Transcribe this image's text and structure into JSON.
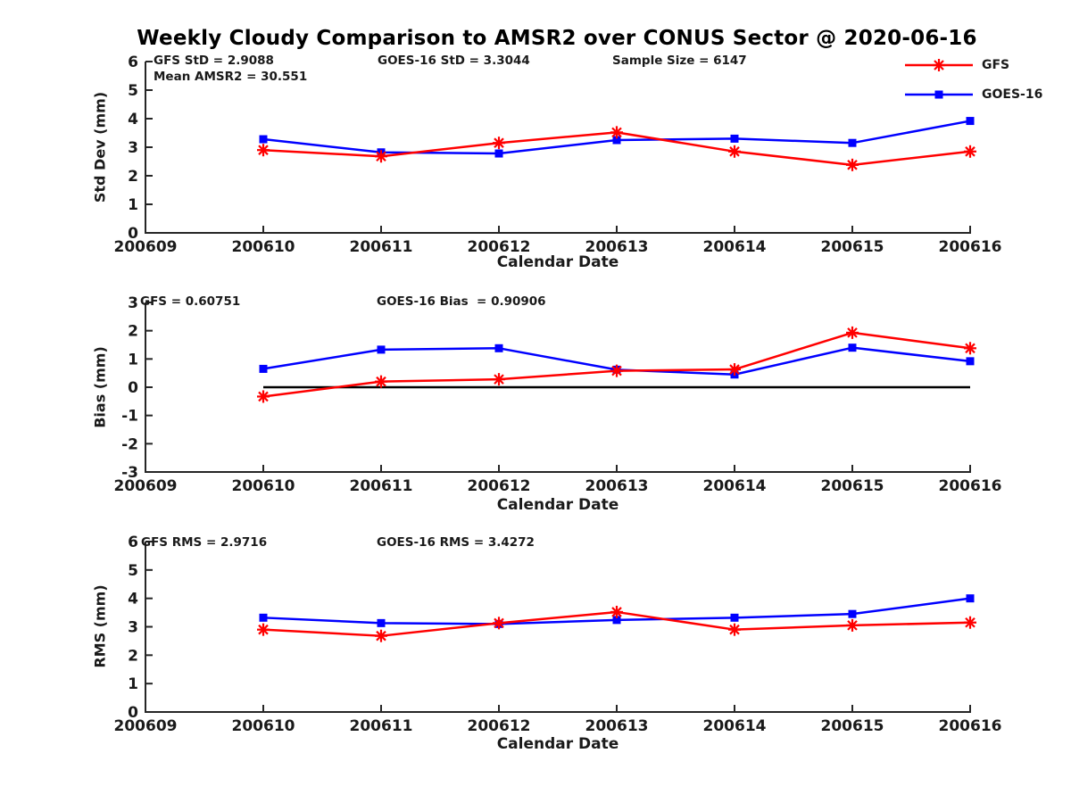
{
  "page": {
    "title": "Weekly Cloudy Comparison to AMSR2 over CONUS Sector @ 2020-06-16"
  },
  "colors": {
    "gfs": "#ff0000",
    "goes16": "#0000ff",
    "axis": "#262626",
    "zero_line": "#000000"
  },
  "legend": {
    "position": "top-right",
    "items": [
      {
        "label": "GFS",
        "color": "#ff0000",
        "marker": "asterisk"
      },
      {
        "label": "GOES-16",
        "color": "#0000ff",
        "marker": "square"
      }
    ]
  },
  "chart_data": [
    {
      "type": "line",
      "ylabel": "Std Dev (mm)",
      "xlabel": "Calendar Date",
      "ylim": [
        0,
        6
      ],
      "yticks": [
        0,
        1,
        2,
        3,
        4,
        5,
        6
      ],
      "grid": false,
      "categories": [
        "200609",
        "200610",
        "200611",
        "200612",
        "200613",
        "200614",
        "200615",
        "200616"
      ],
      "series": [
        {
          "name": "GFS",
          "color": "#ff0000",
          "marker": "asterisk",
          "values": [
            null,
            2.9,
            2.68,
            3.15,
            3.52,
            2.85,
            2.38,
            2.85
          ]
        },
        {
          "name": "GOES-16",
          "color": "#0000ff",
          "marker": "square",
          "values": [
            null,
            3.28,
            2.82,
            2.78,
            3.25,
            3.3,
            3.15,
            3.92
          ]
        }
      ],
      "annotations": [
        {
          "text": "GFS StD = 2.9088"
        },
        {
          "text": "Mean AMSR2 = 30.551"
        },
        {
          "text": "GOES-16 StD = 3.3044"
        },
        {
          "text": "Sample Size = 6147"
        }
      ]
    },
    {
      "type": "line",
      "ylabel": "Bias (mm)",
      "xlabel": "Calendar Date",
      "ylim": [
        -3,
        3
      ],
      "yticks": [
        -3,
        -2,
        -1,
        0,
        1,
        2,
        3
      ],
      "grid": false,
      "zero_line": true,
      "categories": [
        "200609",
        "200610",
        "200611",
        "200612",
        "200613",
        "200614",
        "200615",
        "200616"
      ],
      "series": [
        {
          "name": "GFS",
          "color": "#ff0000",
          "marker": "asterisk",
          "values": [
            null,
            -0.33,
            0.2,
            0.28,
            0.58,
            0.63,
            1.93,
            1.38
          ]
        },
        {
          "name": "GOES-16",
          "color": "#0000ff",
          "marker": "square",
          "values": [
            null,
            0.65,
            1.33,
            1.38,
            0.62,
            0.45,
            1.4,
            0.92
          ]
        }
      ],
      "annotations": [
        {
          "text": "GFS = 0.60751"
        },
        {
          "text": "GOES-16 Bias  = 0.90906"
        }
      ]
    },
    {
      "type": "line",
      "ylabel": "RMS (mm)",
      "xlabel": "Calendar Date",
      "ylim": [
        0,
        6
      ],
      "yticks": [
        0,
        1,
        2,
        3,
        4,
        5,
        6
      ],
      "grid": false,
      "categories": [
        "200609",
        "200610",
        "200611",
        "200612",
        "200613",
        "200614",
        "200615",
        "200616"
      ],
      "series": [
        {
          "name": "GFS",
          "color": "#ff0000",
          "marker": "asterisk",
          "values": [
            null,
            2.9,
            2.68,
            3.13,
            3.52,
            2.9,
            3.05,
            3.15
          ]
        },
        {
          "name": "GOES-16",
          "color": "#0000ff",
          "marker": "square",
          "values": [
            null,
            3.32,
            3.13,
            3.1,
            3.24,
            3.32,
            3.45,
            4.0
          ]
        }
      ],
      "annotations": [
        {
          "text": "GFS RMS = 2.9716"
        },
        {
          "text": "GOES-16 RMS = 3.4272"
        }
      ]
    }
  ]
}
